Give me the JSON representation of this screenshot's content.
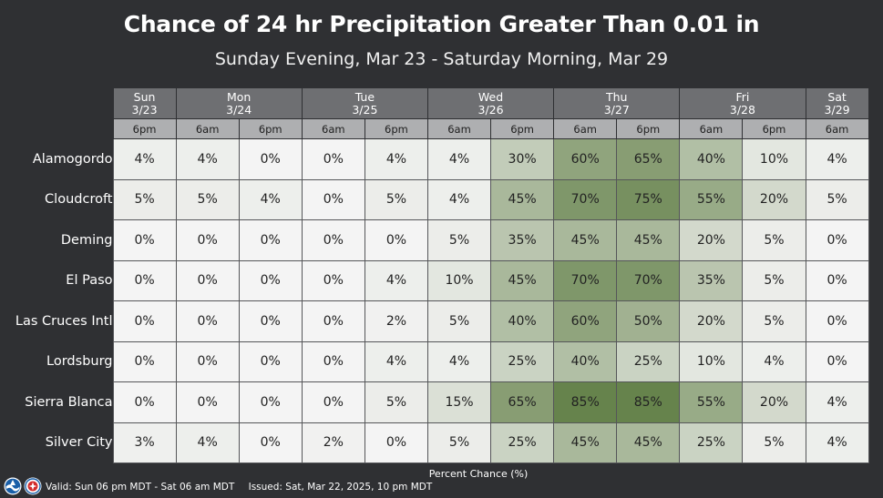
{
  "title": "Chance of 24 hr Precipitation Greater Than 0.01 in",
  "subtitle": "Sunday Evening, Mar 23 - Saturday Morning, Mar 29",
  "chart_data": {
    "type": "table",
    "days": [
      {
        "label": "Sun",
        "date": "3/23",
        "span": 1
      },
      {
        "label": "Mon",
        "date": "3/24",
        "span": 2
      },
      {
        "label": "Tue",
        "date": "3/25",
        "span": 2
      },
      {
        "label": "Wed",
        "date": "3/26",
        "span": 2
      },
      {
        "label": "Thu",
        "date": "3/27",
        "span": 2
      },
      {
        "label": "Fri",
        "date": "3/28",
        "span": 2
      },
      {
        "label": "Sat",
        "date": "3/29",
        "span": 1
      }
    ],
    "periods": [
      "6pm",
      "6am",
      "6pm",
      "6am",
      "6pm",
      "6am",
      "6pm",
      "6am",
      "6pm",
      "6am",
      "6pm",
      "6am"
    ],
    "rows": [
      {
        "location": "Alamogordo",
        "values": [
          4,
          4,
          0,
          0,
          4,
          4,
          30,
          60,
          65,
          40,
          10,
          4
        ]
      },
      {
        "location": "Cloudcroft",
        "values": [
          5,
          5,
          4,
          0,
          5,
          4,
          45,
          70,
          75,
          55,
          20,
          5
        ]
      },
      {
        "location": "Deming",
        "values": [
          0,
          0,
          0,
          0,
          0,
          5,
          35,
          45,
          45,
          20,
          5,
          0
        ]
      },
      {
        "location": "El Paso",
        "values": [
          0,
          0,
          0,
          0,
          4,
          10,
          45,
          70,
          70,
          35,
          5,
          0
        ]
      },
      {
        "location": "Las Cruces Intl",
        "values": [
          0,
          0,
          0,
          0,
          2,
          5,
          40,
          60,
          50,
          20,
          5,
          0
        ]
      },
      {
        "location": "Lordsburg",
        "values": [
          0,
          0,
          0,
          0,
          4,
          4,
          25,
          40,
          25,
          10,
          4,
          0
        ]
      },
      {
        "location": "Sierra Blanca",
        "values": [
          0,
          0,
          0,
          0,
          5,
          15,
          65,
          85,
          85,
          55,
          20,
          4
        ]
      },
      {
        "location": "Silver City",
        "values": [
          3,
          4,
          0,
          2,
          0,
          5,
          25,
          45,
          45,
          25,
          5,
          4
        ]
      }
    ],
    "value_suffix": "%",
    "xlabel": "Percent Chance (%)",
    "color_scale": {
      "low": "#f4f4f4",
      "high": "#5e7c42"
    }
  },
  "footer": {
    "valid": "Valid: Sun 06 pm MDT - Sat 06 am MDT",
    "issued": "Issued: Sat, Mar 22, 2025, 10 pm MDT"
  },
  "logos": {
    "noaa": "noaa-logo-icon",
    "nws": "nws-logo-icon"
  }
}
